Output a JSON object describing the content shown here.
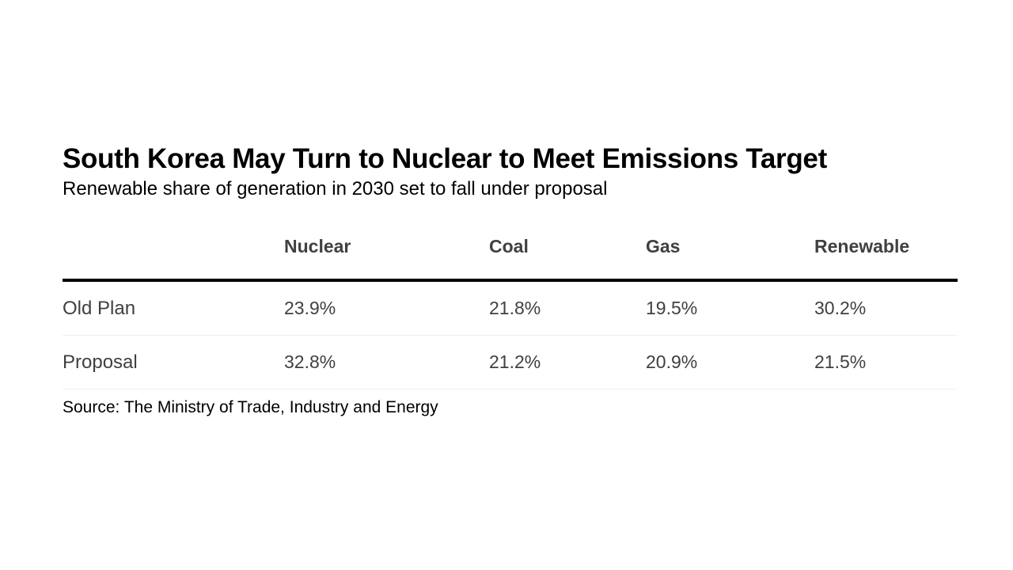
{
  "chart_data": {
    "type": "table",
    "title": "South Korea May Turn to Nuclear to Meet Emissions Target",
    "subtitle": "Renewable share of generation in 2030 set to fall under proposal",
    "columns": [
      "",
      "Nuclear",
      "Coal",
      "Gas",
      "Renewable"
    ],
    "rows": [
      {
        "label": "Old Plan",
        "values": [
          "23.9%",
          "21.8%",
          "19.5%",
          "30.2%"
        ]
      },
      {
        "label": "Proposal",
        "values": [
          "32.8%",
          "21.2%",
          "20.9%",
          "21.5%"
        ]
      }
    ],
    "source": "Source: The Ministry of Trade, Industry and Energy"
  }
}
